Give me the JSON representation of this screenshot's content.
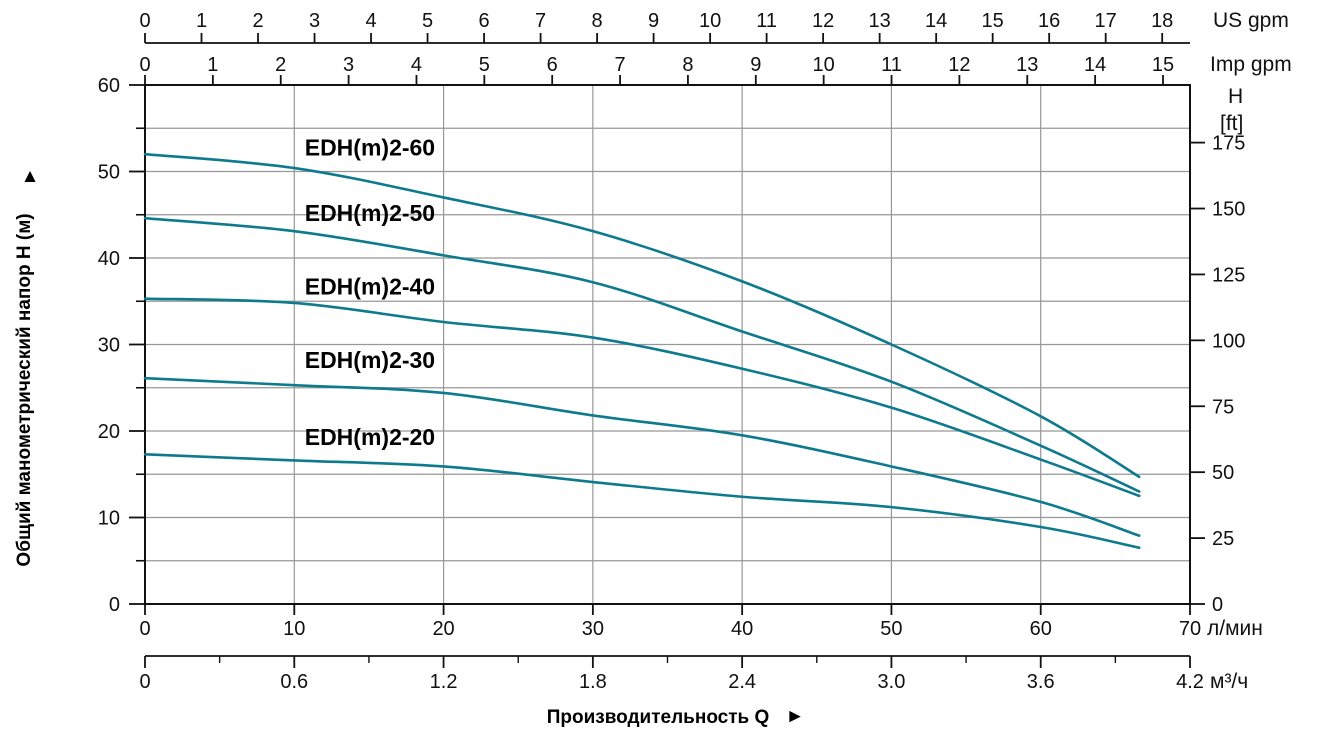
{
  "chart_data": {
    "type": "line",
    "xlabel": "Производительность Q",
    "xlabel_arrow": "►",
    "xlim_l_min": [
      0,
      70
    ],
    "ylim_m": [
      0,
      60
    ],
    "grid": {
      "vertical_every_l_min": 10,
      "horizontal_every_m": 5,
      "on": true
    },
    "x_axes": {
      "us_gpm": {
        "unit": "US gpm",
        "ticks": [
          0,
          1,
          2,
          3,
          4,
          5,
          6,
          7,
          8,
          9,
          10,
          11,
          12,
          13,
          14,
          15,
          16,
          17,
          18
        ],
        "l_min_per_unit": 3.785411784
      },
      "imp_gpm": {
        "unit": "Imp gpm",
        "ticks": [
          0,
          1,
          2,
          3,
          4,
          5,
          6,
          7,
          8,
          9,
          10,
          11,
          12,
          13,
          14,
          15
        ],
        "l_min_per_unit": 4.54609
      },
      "l_min": {
        "unit": "л/мин",
        "ticks": [
          0,
          10,
          20,
          30,
          40,
          50,
          60,
          70
        ]
      },
      "m3_h": {
        "unit": "м³/ч",
        "ticks": [
          "0",
          "0.6",
          "1.2",
          "1.8",
          "2.4",
          "3.0",
          "3.6",
          "4.2"
        ],
        "minor_ticks": [
          0.3,
          0.9,
          1.5,
          2.1,
          2.7,
          3.3,
          3.9
        ],
        "l_min_per_unit": 16.666667
      }
    },
    "y_axes": {
      "m": {
        "label": "Общий манометрический напор H (м)",
        "arrow": "▲",
        "ticks": [
          0,
          10,
          20,
          30,
          40,
          50,
          60
        ],
        "minor_ticks": [
          5,
          15,
          25,
          35,
          45,
          55
        ]
      },
      "ft": {
        "unit_line1": "H",
        "unit_line2": "[ft]",
        "ticks": [
          0,
          25,
          50,
          75,
          100,
          125,
          150,
          175
        ],
        "m_per_unit": 0.3048
      }
    },
    "series": [
      {
        "name": "EDH(m)2-60",
        "label_at_l_min_m": [
          10.7,
          52.8
        ],
        "points_l_min_m": [
          [
            0,
            52.0
          ],
          [
            10,
            50.4
          ],
          [
            20,
            47.0
          ],
          [
            30,
            43.1
          ],
          [
            40,
            37.3
          ],
          [
            50,
            30.0
          ],
          [
            60,
            21.7
          ],
          [
            66.6,
            14.7
          ]
        ]
      },
      {
        "name": "EDH(m)2-50",
        "label_at_l_min_m": [
          10.7,
          45.2
        ],
        "points_l_min_m": [
          [
            0,
            44.6
          ],
          [
            10,
            43.1
          ],
          [
            20,
            40.3
          ],
          [
            30,
            37.2
          ],
          [
            40,
            31.5
          ],
          [
            50,
            25.7
          ],
          [
            60,
            18.3
          ],
          [
            66.6,
            13.0
          ]
        ]
      },
      {
        "name": "EDH(m)2-40",
        "label_at_l_min_m": [
          10.7,
          36.7
        ],
        "points_l_min_m": [
          [
            0,
            35.3
          ],
          [
            10,
            34.8
          ],
          [
            20,
            32.6
          ],
          [
            30,
            30.8
          ],
          [
            40,
            27.2
          ],
          [
            50,
            22.7
          ],
          [
            60,
            16.7
          ],
          [
            66.6,
            12.5
          ]
        ]
      },
      {
        "name": "EDH(m)2-30",
        "label_at_l_min_m": [
          10.7,
          28.2
        ],
        "points_l_min_m": [
          [
            0,
            26.1
          ],
          [
            10,
            25.3
          ],
          [
            20,
            24.4
          ],
          [
            30,
            21.8
          ],
          [
            40,
            19.5
          ],
          [
            50,
            15.9
          ],
          [
            60,
            11.8
          ],
          [
            66.6,
            7.9
          ]
        ]
      },
      {
        "name": "EDH(m)2-20",
        "label_at_l_min_m": [
          10.7,
          19.3
        ],
        "points_l_min_m": [
          [
            0,
            17.3
          ],
          [
            10,
            16.6
          ],
          [
            20,
            15.9
          ],
          [
            30,
            14.1
          ],
          [
            40,
            12.4
          ],
          [
            50,
            11.2
          ],
          [
            60,
            8.9
          ],
          [
            66.6,
            6.5
          ]
        ]
      }
    ],
    "colors": {
      "curve": "#0e7a8d",
      "grid": "#979797",
      "axis": "#111111"
    }
  }
}
